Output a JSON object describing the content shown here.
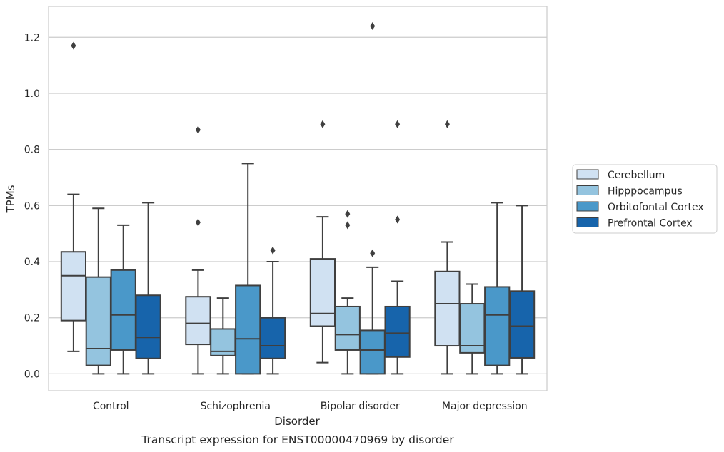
{
  "chart_data": {
    "type": "boxplot",
    "title": "",
    "caption": "Transcript expression for ENST00000470969 by disorder",
    "xlabel": "Disorder",
    "ylabel": "TPMs",
    "ylim": [
      -0.06,
      1.31
    ],
    "yticks": [
      0.0,
      0.2,
      0.4,
      0.6,
      0.8,
      1.0,
      1.2
    ],
    "ytick_labels": [
      "0.0",
      "0.2",
      "0.4",
      "0.6",
      "0.8",
      "1.0",
      "1.2"
    ],
    "grid": "horizontal",
    "legend_position": "right",
    "categories": [
      "Control",
      "Schizophrenia",
      "Bipolar disorder",
      "Major depression"
    ],
    "series": [
      {
        "name": "Cerebellum",
        "color": "#d0e1f2",
        "boxes": [
          {
            "whislo": 0.08,
            "q1": 0.19,
            "med": 0.35,
            "q3": 0.435,
            "whishi": 0.64,
            "fliers": [
              1.17
            ]
          },
          {
            "whislo": 0.0,
            "q1": 0.105,
            "med": 0.18,
            "q3": 0.275,
            "whishi": 0.37,
            "fliers": [
              0.54,
              0.87
            ]
          },
          {
            "whislo": 0.04,
            "q1": 0.17,
            "med": 0.215,
            "q3": 0.41,
            "whishi": 0.56,
            "fliers": [
              0.89
            ]
          },
          {
            "whislo": 0.0,
            "q1": 0.1,
            "med": 0.25,
            "q3": 0.365,
            "whishi": 0.47,
            "fliers": [
              0.89
            ]
          }
        ]
      },
      {
        "name": "Hipppocampus",
        "color": "#94c4df",
        "boxes": [
          {
            "whislo": 0.0,
            "q1": 0.03,
            "med": 0.09,
            "q3": 0.345,
            "whishi": 0.59,
            "fliers": []
          },
          {
            "whislo": 0.0,
            "q1": 0.065,
            "med": 0.08,
            "q3": 0.16,
            "whishi": 0.27,
            "fliers": []
          },
          {
            "whislo": 0.0,
            "q1": 0.085,
            "med": 0.14,
            "q3": 0.24,
            "whishi": 0.27,
            "fliers": [
              0.53,
              0.57
            ]
          },
          {
            "whislo": 0.0,
            "q1": 0.075,
            "med": 0.1,
            "q3": 0.25,
            "whishi": 0.32,
            "fliers": []
          }
        ]
      },
      {
        "name": "Orbitofontal Cortex",
        "color": "#4a98c9",
        "boxes": [
          {
            "whislo": 0.0,
            "q1": 0.085,
            "med": 0.21,
            "q3": 0.37,
            "whishi": 0.53,
            "fliers": []
          },
          {
            "whislo": 0.0,
            "q1": 0.0,
            "med": 0.125,
            "q3": 0.315,
            "whishi": 0.75,
            "fliers": []
          },
          {
            "whislo": 0.0,
            "q1": 0.0,
            "med": 0.085,
            "q3": 0.155,
            "whishi": 0.38,
            "fliers": [
              0.43,
              1.24
            ]
          },
          {
            "whislo": 0.0,
            "q1": 0.03,
            "med": 0.21,
            "q3": 0.31,
            "whishi": 0.61,
            "fliers": []
          }
        ]
      },
      {
        "name": "Prefrontal Cortex",
        "color": "#1764ab",
        "boxes": [
          {
            "whislo": 0.0,
            "q1": 0.055,
            "med": 0.13,
            "q3": 0.28,
            "whishi": 0.61,
            "fliers": []
          },
          {
            "whislo": 0.0,
            "q1": 0.055,
            "med": 0.1,
            "q3": 0.2,
            "whishi": 0.4,
            "fliers": [
              0.44
            ]
          },
          {
            "whislo": 0.0,
            "q1": 0.06,
            "med": 0.145,
            "q3": 0.24,
            "whishi": 0.33,
            "fliers": [
              0.55,
              0.89
            ]
          },
          {
            "whislo": 0.0,
            "q1": 0.057,
            "med": 0.17,
            "q3": 0.295,
            "whishi": 0.6,
            "fliers": []
          }
        ]
      }
    ]
  }
}
